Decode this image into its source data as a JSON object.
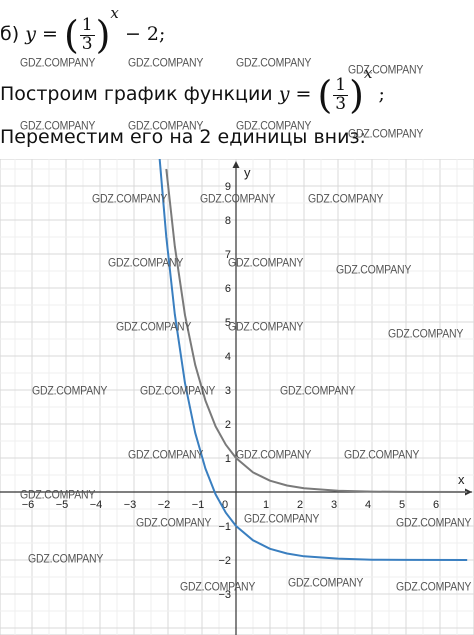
{
  "line1": {
    "label": "б)",
    "lhs": "y",
    "eq": "=",
    "num": "1",
    "den": "3",
    "exp": "x",
    "rest": "− 2;"
  },
  "line2": {
    "text": "Построим график функции",
    "lhs": "y",
    "eq": "=",
    "num": "1",
    "den": "3",
    "exp": "x",
    "end": ";"
  },
  "line3": {
    "text": "Переместим его на 2 единицы вниз:"
  },
  "watermark": "GDZ.COMPANY",
  "chart_data": {
    "type": "line",
    "x_axis_label": "x",
    "y_axis_label": "y",
    "xlim": [
      -7,
      7
    ],
    "ylim": [
      -4,
      9.5
    ],
    "grid": true,
    "x_ticks": [
      "-6",
      "-5",
      "-4",
      "-3",
      "-2",
      "-1",
      "0",
      "1",
      "2",
      "3",
      "4",
      "5",
      "6"
    ],
    "y_ticks": [
      "9",
      "8",
      "7",
      "6",
      "5",
      "4",
      "3",
      "2",
      "1",
      "-1",
      "-2",
      "-3"
    ],
    "series": [
      {
        "function": "(1/3)^x",
        "color": "#7a7a7a",
        "x": [
          -2.05,
          -1.8,
          -1.5,
          -1.2,
          -0.9,
          -0.6,
          -0.3,
          0,
          0.5,
          1,
          1.5,
          2,
          3,
          4,
          5,
          6.8
        ],
        "y": [
          9.5,
          7.23,
          5.2,
          3.74,
          2.69,
          1.93,
          1.39,
          1.0,
          0.577,
          0.333,
          0.192,
          0.111,
          0.037,
          0.012,
          0.004,
          0.0006
        ]
      },
      {
        "function": "(1/3)^x - 2",
        "color": "#3a7fc0",
        "x": [
          -2.25,
          -2.05,
          -1.8,
          -1.5,
          -1.2,
          -0.9,
          -0.6,
          -0.3,
          0,
          0.5,
          1,
          1.5,
          2,
          3,
          4,
          5,
          6.8
        ],
        "y": [
          9.85,
          7.5,
          5.23,
          3.2,
          1.74,
          0.69,
          -0.07,
          -0.61,
          -1.0,
          -1.42,
          -1.67,
          -1.81,
          -1.89,
          -1.96,
          -1.99,
          -1.996,
          -1.999
        ]
      }
    ]
  }
}
